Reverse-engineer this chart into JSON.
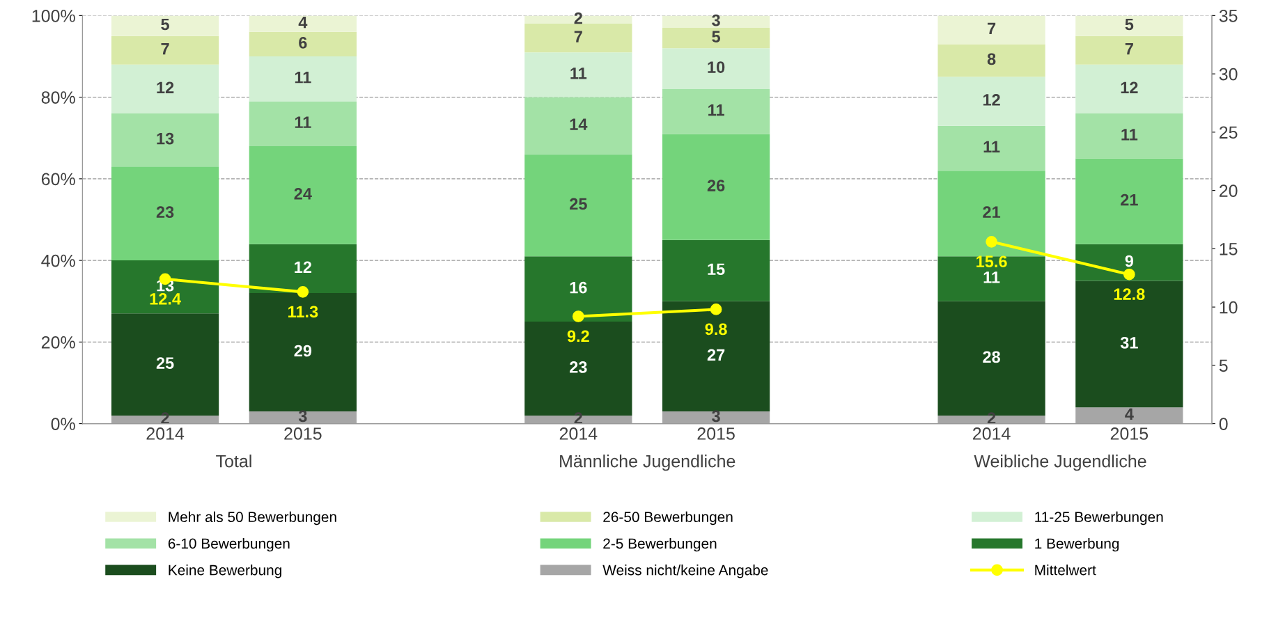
{
  "chart_data": {
    "type": "bar",
    "stacked": true,
    "categories": [
      "2014",
      "2015",
      null,
      "2014",
      "2015",
      null,
      "2014",
      "2015"
    ],
    "series": [
      {
        "name": "Weiss nicht/keine Angabe",
        "color": "#a6a6a6",
        "values": [
          2,
          3,
          null,
          2,
          3,
          null,
          2,
          4
        ]
      },
      {
        "name": "Keine Bewerbung",
        "color": "#1b4d1e",
        "values": [
          25,
          29,
          null,
          23,
          27,
          null,
          28,
          31
        ]
      },
      {
        "name": "1 Bewerbung",
        "color": "#26772c",
        "values": [
          13,
          12,
          null,
          16,
          15,
          null,
          11,
          9
        ]
      },
      {
        "name": "2-5 Bewerbungen",
        "color": "#74d47b",
        "values": [
          23,
          24,
          null,
          25,
          26,
          null,
          21,
          21
        ]
      },
      {
        "name": "6-10 Bewerbungen",
        "color": "#a3e2a6",
        "values": [
          13,
          11,
          null,
          14,
          11,
          null,
          11,
          11
        ]
      },
      {
        "name": "11-25 Bewerbungen",
        "color": "#d2f0d4",
        "values": [
          12,
          11,
          null,
          11,
          10,
          null,
          12,
          12
        ]
      },
      {
        "name": "26-50 Bewerbungen",
        "color": "#d9e9a8",
        "values": [
          7,
          6,
          null,
          7,
          5,
          null,
          8,
          7
        ]
      },
      {
        "name": "Mehr als 50 Bewerbungen",
        "color": "#ebf4d4",
        "values": [
          5,
          4,
          null,
          2,
          3,
          null,
          7,
          5
        ]
      },
      {
        "name": "Mittelwert",
        "type": "line",
        "axis": "y2",
        "color": "#ffff00",
        "marker": "circle",
        "values": [
          12.4,
          11.3,
          null,
          9.2,
          9.8,
          null,
          15.6,
          12.8
        ]
      }
    ],
    "ylim": [
      0,
      100
    ],
    "yticks": [
      {
        "value": 0,
        "label": "0%"
      },
      {
        "value": 20,
        "label": "20%"
      },
      {
        "value": 40,
        "label": "40%"
      },
      {
        "value": 60,
        "label": "60%"
      },
      {
        "value": 80,
        "label": "80%"
      },
      {
        "value": 100,
        "label": "100%"
      }
    ],
    "y2lim": [
      0,
      35
    ],
    "y2ticks": [
      0,
      5,
      10,
      15,
      20,
      25,
      30,
      35
    ],
    "data_labels": true,
    "grid": "y",
    "legend": "bottom",
    "annotations": [
      "Total",
      "Männliche Jugendliche",
      "Weibliche Jugendliche"
    ]
  }
}
